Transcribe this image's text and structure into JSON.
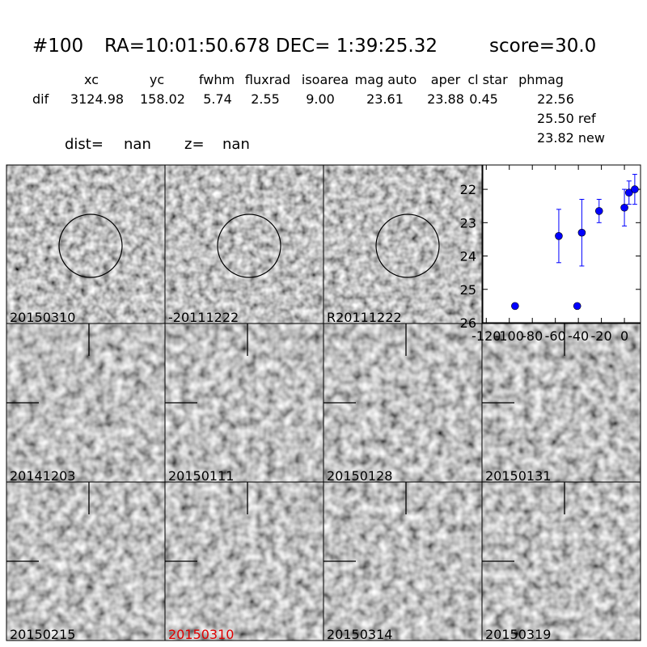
{
  "header": {
    "id": "#100",
    "coords": "RA=10:01:50.678 DEC= 1:39:25.32",
    "score": "score=30.0"
  },
  "table": {
    "columns": [
      "xc",
      "yc",
      "fwhm",
      "fluxrad",
      "isoarea",
      "mag auto",
      "aper",
      "cl star",
      "phmag"
    ],
    "row_label": "dif",
    "values": [
      "3124.98",
      "158.02",
      "5.74",
      "2.55",
      "9.00",
      "23.61",
      "23.88",
      "0.45",
      "22.56"
    ],
    "ref": "25.50 ref",
    "new": "23.82 new"
  },
  "distance": {
    "dist_label": "dist=",
    "dist": "nan",
    "z_label": "z=",
    "z": "nan"
  },
  "stamps": [
    {
      "label": "20150310",
      "circle": true
    },
    {
      "label": "-20111222",
      "circle": true
    },
    {
      "label": "R20111222",
      "circle": true
    },
    {
      "label": "20141203",
      "circle": false
    },
    {
      "label": "20150111",
      "circle": false
    },
    {
      "label": "20150128",
      "circle": false
    },
    {
      "label": "20150131",
      "circle": false
    },
    {
      "label": "20150215",
      "circle": false
    },
    {
      "label": "20150310",
      "circle": false,
      "color": "#e00000"
    },
    {
      "label": "20150314",
      "circle": false
    },
    {
      "label": "20150319",
      "circle": false
    }
  ],
  "chart_data": {
    "type": "errorbar",
    "x": [
      -95,
      -57,
      -41,
      -37,
      -22,
      0,
      4,
      9
    ],
    "series": [
      {
        "color": "#0000ff",
        "values": [
          25.5,
          23.4,
          25.5,
          23.3,
          22.65,
          22.55,
          22.1,
          22.0
        ],
        "errors": [
          0.05,
          0.8,
          0.05,
          1.0,
          0.35,
          0.55,
          0.35,
          0.45
        ]
      }
    ],
    "xlim": [
      -123,
      14
    ],
    "ylim": [
      26,
      21.27
    ],
    "xticks": [
      -120,
      -100,
      -80,
      -60,
      -40,
      -20,
      0
    ],
    "yticks": [
      22,
      23,
      24,
      25,
      26
    ]
  }
}
